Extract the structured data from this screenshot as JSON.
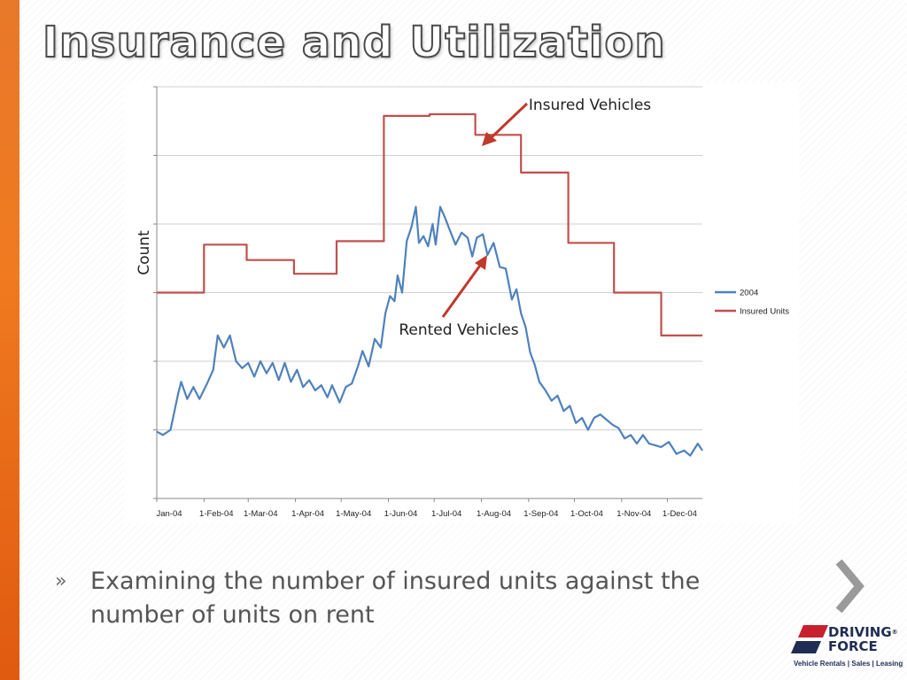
{
  "slide": {
    "title": "Insurance and Utilization",
    "bullet": "Examining the number of insured units against the number of units on rent",
    "bullet_mark": "»"
  },
  "logo": {
    "line1": "DRIVING",
    "line2": "FORCE",
    "registered": "®",
    "tagline": "Vehicle Rentals | Sales | Leasing",
    "colors": {
      "red": "#c8202e",
      "navy": "#1f2d54"
    }
  },
  "chart_data": {
    "type": "line",
    "ylabel": "Count",
    "x_ticks": [
      "Jan-04",
      "1-Feb-04",
      "1-Mar-04",
      "1-Apr-04",
      "1-May-04",
      "1-Jun-04",
      "1-Jul-04",
      "1-Aug-04",
      "1-Sep-04",
      "1-Oct-04",
      "1-Nov-04",
      "1-Dec-04"
    ],
    "x_range_days": [
      0,
      358
    ],
    "y_tick_labels_visible": false,
    "grid": true,
    "legend": "right",
    "annotations": [
      "Insured Vehicles",
      "Rented Vehicles"
    ],
    "series": [
      {
        "name": "2004",
        "color": "#4f81bd",
        "points": [
          [
            0,
            99
          ],
          [
            4,
            97
          ],
          [
            9,
            100
          ],
          [
            14,
            121
          ],
          [
            16,
            128
          ],
          [
            20,
            118
          ],
          [
            24,
            125
          ],
          [
            28,
            118
          ],
          [
            33,
            127
          ],
          [
            37,
            135
          ],
          [
            40,
            155
          ],
          [
            44,
            148
          ],
          [
            48,
            155
          ],
          [
            52,
            140
          ],
          [
            56,
            136
          ],
          [
            60,
            139
          ],
          [
            64,
            131
          ],
          [
            68,
            140
          ],
          [
            72,
            133
          ],
          [
            76,
            139
          ],
          [
            80,
            129
          ],
          [
            84,
            139
          ],
          [
            88,
            128
          ],
          [
            92,
            135
          ],
          [
            96,
            125
          ],
          [
            100,
            129
          ],
          [
            104,
            123
          ],
          [
            108,
            126
          ],
          [
            112,
            119
          ],
          [
            115,
            126
          ],
          [
            120,
            116
          ],
          [
            124,
            125
          ],
          [
            128,
            127
          ],
          [
            132,
            137
          ],
          [
            135,
            146
          ],
          [
            139,
            137
          ],
          [
            143,
            153
          ],
          [
            147,
            148
          ],
          [
            150,
            168
          ],
          [
            153,
            178
          ],
          [
            156,
            175
          ],
          [
            158,
            190
          ],
          [
            161,
            180
          ],
          [
            164,
            210
          ],
          [
            167,
            218
          ],
          [
            170,
            230
          ],
          [
            172,
            209
          ],
          [
            175,
            213
          ],
          [
            178,
            207
          ],
          [
            181,
            220
          ],
          [
            183,
            208
          ],
          [
            186,
            230
          ],
          [
            189,
            224
          ],
          [
            192,
            217
          ],
          [
            196,
            208
          ],
          [
            200,
            215
          ],
          [
            204,
            212
          ],
          [
            207,
            201
          ],
          [
            210,
            212
          ],
          [
            214,
            214
          ],
          [
            217,
            202
          ],
          [
            221,
            209
          ],
          [
            225,
            195
          ],
          [
            229,
            194
          ],
          [
            233,
            176
          ],
          [
            236,
            182
          ],
          [
            239,
            168
          ],
          [
            242,
            160
          ],
          [
            245,
            145
          ],
          [
            248,
            138
          ],
          [
            251,
            128
          ],
          [
            255,
            123
          ],
          [
            259,
            117
          ],
          [
            263,
            120
          ],
          [
            267,
            111
          ],
          [
            271,
            114
          ],
          [
            275,
            104
          ],
          [
            279,
            107
          ],
          [
            283,
            100
          ],
          [
            287,
            107
          ],
          [
            291,
            109
          ],
          [
            295,
            106
          ],
          [
            299,
            103
          ],
          [
            303,
            101
          ],
          [
            307,
            95
          ],
          [
            311,
            97
          ],
          [
            315,
            92
          ],
          [
            319,
            97
          ],
          [
            323,
            92
          ],
          [
            327,
            91
          ],
          [
            331,
            90
          ],
          [
            336,
            93
          ],
          [
            341,
            86
          ],
          [
            346,
            88
          ],
          [
            350,
            85
          ],
          [
            355,
            92
          ],
          [
            358,
            88
          ]
        ]
      },
      {
        "name": "Insured Units",
        "color": "#c0504d",
        "points": [
          [
            0,
            180
          ],
          [
            31,
            180
          ],
          [
            31,
            208
          ],
          [
            59,
            208
          ],
          [
            59,
            199
          ],
          [
            90,
            199
          ],
          [
            90,
            191
          ],
          [
            118,
            191
          ],
          [
            118,
            210
          ],
          [
            149,
            210
          ],
          [
            149,
            283
          ],
          [
            179,
            283
          ],
          [
            179,
            284
          ],
          [
            209,
            284
          ],
          [
            209,
            272
          ],
          [
            239,
            272
          ],
          [
            239,
            250
          ],
          [
            270,
            250
          ],
          [
            270,
            209
          ],
          [
            300,
            209
          ],
          [
            300,
            180
          ],
          [
            331,
            180
          ],
          [
            331,
            155
          ],
          [
            358,
            155
          ]
        ]
      }
    ]
  }
}
